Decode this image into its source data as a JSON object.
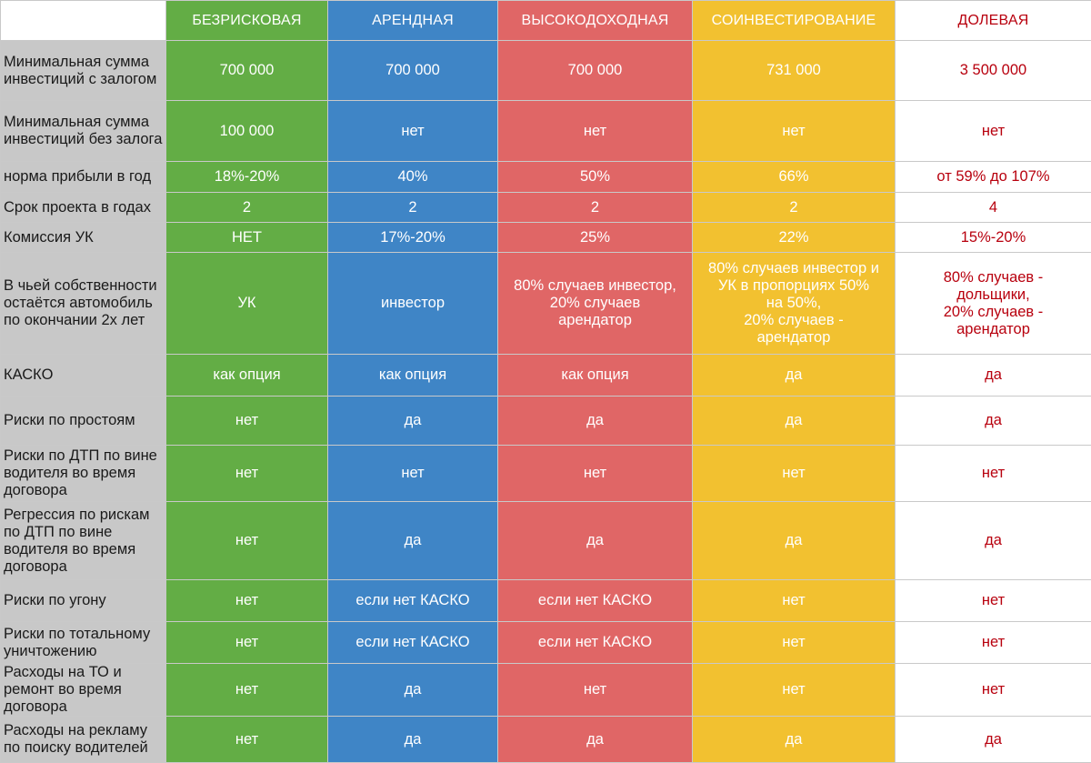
{
  "table": {
    "columns": [
      "БЕЗРИСКОВАЯ",
      "АРЕНДНАЯ",
      "ВЫСОКОДОХОДНАЯ",
      "СОИНВЕСТИРОВАНИЕ",
      "ДОЛЕВАЯ"
    ],
    "rows": [
      {
        "label": "Минимальная сумма инвестиций с залогом",
        "cells": [
          "700 000",
          "700 000",
          "700 000",
          "731 000",
          "3 500 000"
        ]
      },
      {
        "label": "Минимальная сумма инвестиций без залога",
        "cells": [
          "100 000",
          "нет",
          "нет",
          "нет",
          "нет"
        ]
      },
      {
        "label": "норма прибыли в год",
        "cells": [
          "18%-20%",
          "40%",
          "50%",
          "66%",
          "от 59% до 107%"
        ]
      },
      {
        "label": "Срок проекта в годах",
        "cells": [
          "2",
          "2",
          "2",
          "2",
          "4"
        ]
      },
      {
        "label": "Комиссия УК",
        "cells": [
          "НЕТ",
          "17%-20%",
          "25%",
          "22%",
          "15%-20%"
        ]
      },
      {
        "label": "В чьей собственности остаётся автомобиль по окончании 2х лет",
        "cells": [
          "УК",
          "инвестор",
          "80% случаев инвестор,\n20% случаев\nарендатор",
          "80% случаев инвестор и\nУК в пропорциях 50%\nна 50%,\n20% случаев -\nарендатор",
          "80% случаев -\nдольщики,\n20% случаев -\nарендатор"
        ]
      },
      {
        "label": "КАСКО",
        "cells": [
          "как опция",
          "как опция",
          "как опция",
          "да",
          "да"
        ]
      },
      {
        "label": "Риски по простоям",
        "cells": [
          "нет",
          "да",
          "да",
          "да",
          "да"
        ]
      },
      {
        "label": "Риски по ДТП по вине водителя во время договора",
        "cells": [
          "нет",
          "нет",
          "нет",
          "нет",
          "нет"
        ]
      },
      {
        "label": "Регрессия по рискам по ДТП по вине водителя во время договора",
        "cells": [
          "нет",
          "да",
          "да",
          "да",
          "да"
        ]
      },
      {
        "label": "Риски по угону",
        "cells": [
          "нет",
          "если нет КАСКО",
          "если нет КАСКО",
          "нет",
          "нет"
        ]
      },
      {
        "label": "Риски по тотальному уничтожению",
        "cells": [
          "нет",
          "если нет КАСКО",
          "если нет КАСКО",
          "нет",
          "нет"
        ]
      },
      {
        "label": "Расходы на ТО и ремонт во время договора",
        "cells": [
          "нет",
          "да",
          "нет",
          "нет",
          "нет"
        ]
      },
      {
        "label": "Расходы на рекламу по поиску водителей",
        "cells": [
          "нет",
          "да",
          "да",
          "да",
          "да"
        ]
      }
    ]
  },
  "colors": {
    "green": "#63ad45",
    "blue": "#3f85c6",
    "red": "#e06666",
    "yellow": "#f2c130",
    "label_bg": "#c8c8c8",
    "dolevaya_text": "#b8000e"
  }
}
